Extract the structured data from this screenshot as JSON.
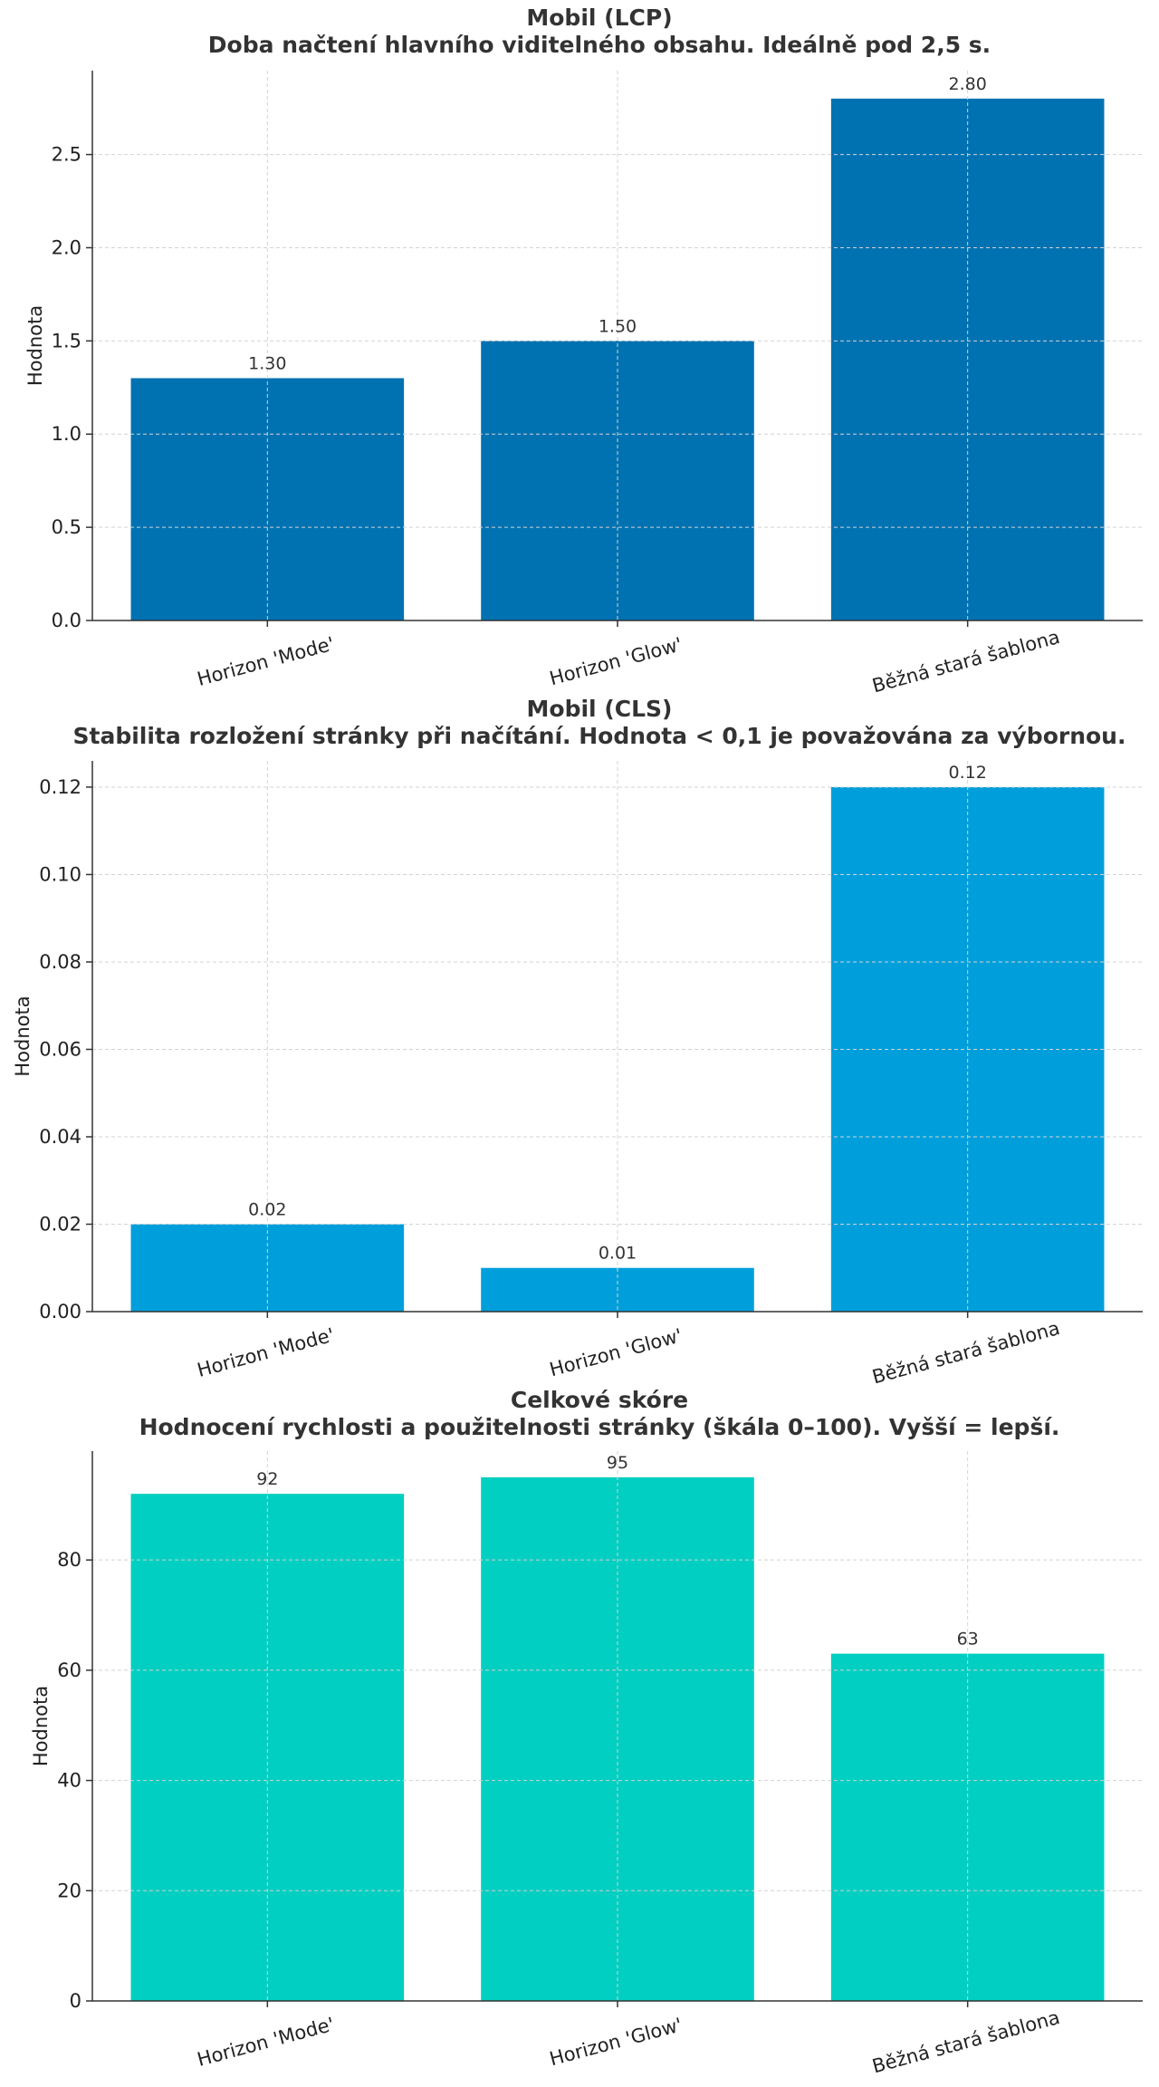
{
  "chart_data": [
    {
      "type": "bar",
      "title": "Mobil (LCP)",
      "subtitle": "Doba načtení hlavního viditelného obsahu. Ideálně pod 2,5 s.",
      "categories": [
        "Horizon 'Mode'",
        "Horizon 'Glow'",
        "Běžná stará šablona"
      ],
      "values": [
        1.3,
        1.5,
        2.8
      ],
      "value_labels": [
        "1.30",
        "1.50",
        "2.80"
      ],
      "xlabel": "",
      "ylabel": "Hodnota",
      "ylim": [
        0,
        2.95
      ],
      "yticks": [
        0.0,
        0.5,
        1.0,
        1.5,
        2.0,
        2.5
      ],
      "ytick_labels": [
        "0.0",
        "0.5",
        "1.0",
        "1.5",
        "2.0",
        "2.5"
      ],
      "color": "#0072B2",
      "grid": true
    },
    {
      "type": "bar",
      "title": "Mobil (CLS)",
      "subtitle": "Stabilita rozložení stránky při načítání. Hodnota < 0,1 je považována za výbornou.",
      "categories": [
        "Horizon 'Mode'",
        "Horizon 'Glow'",
        "Běžná stará šablona"
      ],
      "values": [
        0.02,
        0.01,
        0.12
      ],
      "value_labels": [
        "0.02",
        "0.01",
        "0.12"
      ],
      "xlabel": "",
      "ylabel": "Hodnota",
      "ylim": [
        0,
        0.126
      ],
      "yticks": [
        0.0,
        0.02,
        0.04,
        0.06,
        0.08,
        0.1,
        0.12
      ],
      "ytick_labels": [
        "0.00",
        "0.02",
        "0.04",
        "0.06",
        "0.08",
        "0.10",
        "0.12"
      ],
      "color": "#009FDB",
      "grid": true
    },
    {
      "type": "bar",
      "title": "Celkové skóre",
      "subtitle": "Hodnocení rychlosti a použitelnosti stránky (škála 0–100). Vyšší = lepší.",
      "categories": [
        "Horizon 'Mode'",
        "Horizon 'Glow'",
        "Běžná stará šablona"
      ],
      "values": [
        92,
        95,
        63
      ],
      "value_labels": [
        "92",
        "95",
        "63"
      ],
      "xlabel": "",
      "ylabel": "Hodnota",
      "ylim": [
        0,
        99.75
      ],
      "yticks": [
        0,
        20,
        40,
        60,
        80
      ],
      "ytick_labels": [
        "0",
        "20",
        "40",
        "60",
        "80"
      ],
      "color": "#00CFC1",
      "grid": true
    }
  ]
}
